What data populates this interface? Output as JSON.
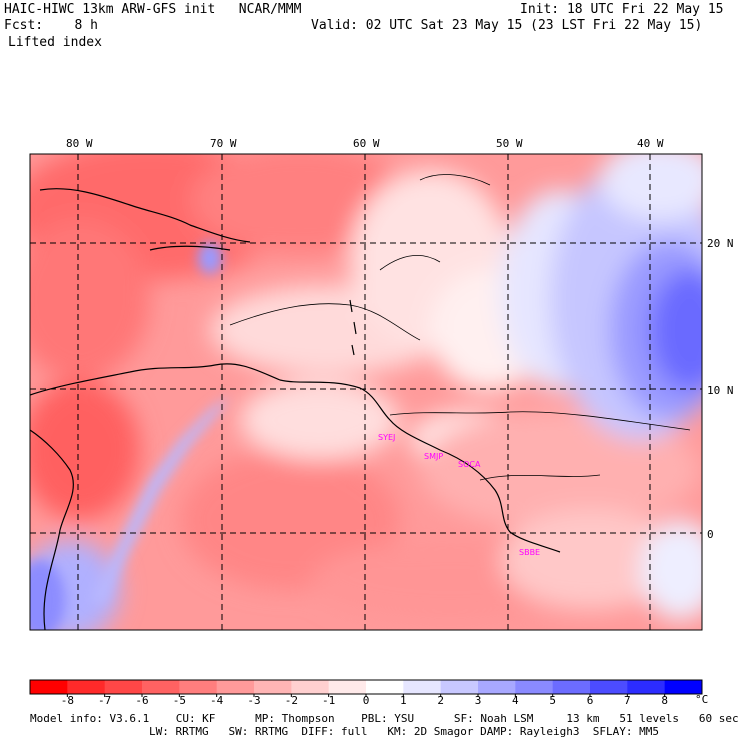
{
  "header": {
    "title_left": "HAIC-HIWC 13km ARW-GFS init   NCAR/MMM",
    "fcst_label": "Fcst:",
    "fcst_value": "8 h",
    "init": "Init: 18 UTC Fri 22 May 15",
    "valid": "Valid: 02 UTC Sat 23 May 15 (23 LST Fri 22 May 15)",
    "field": "Lifted index"
  },
  "map": {
    "lon_labels": [
      "80 W",
      "70 W",
      "60 W",
      "50 W",
      "40 W"
    ],
    "lat_labels": [
      "20 N",
      "10 N",
      "0"
    ],
    "stations": [
      "SYEJ",
      "SMJP",
      "SOCA",
      "SBBE"
    ],
    "land_line_color": "#000000",
    "grid_line_color": "#000000",
    "station_color": "#ff00ff"
  },
  "colorbar": {
    "ticks": [
      "-8",
      "-7",
      "-6",
      "-5",
      "-4",
      "-3",
      "-2",
      "-1",
      "0",
      "1",
      "2",
      "3",
      "4",
      "5",
      "6",
      "7",
      "8"
    ],
    "unit": "°C",
    "colors": [
      "#ff0000",
      "#ff2a2a",
      "#ff4747",
      "#ff6262",
      "#ff7e7e",
      "#ff9a9a",
      "#ffb5b5",
      "#ffd0d0",
      "#ffeaea",
      "#ffffff",
      "#e6e6ff",
      "#c8c8ff",
      "#a8a8ff",
      "#8a8aff",
      "#6c6cff",
      "#4c4cff",
      "#2c2cff",
      "#0000ff"
    ]
  },
  "model_info": {
    "line1": "Model info: V3.6.1    CU: KF      MP: Thompson    PBL: YSU      SF: Noah LSM     13 km   51 levels   60 sec",
    "line2": "LW: RRTMG   SW: RRTMG  DIFF: full   KM: 2D Smagor DAMP: Rayleigh3  SFLAY: MM5"
  }
}
